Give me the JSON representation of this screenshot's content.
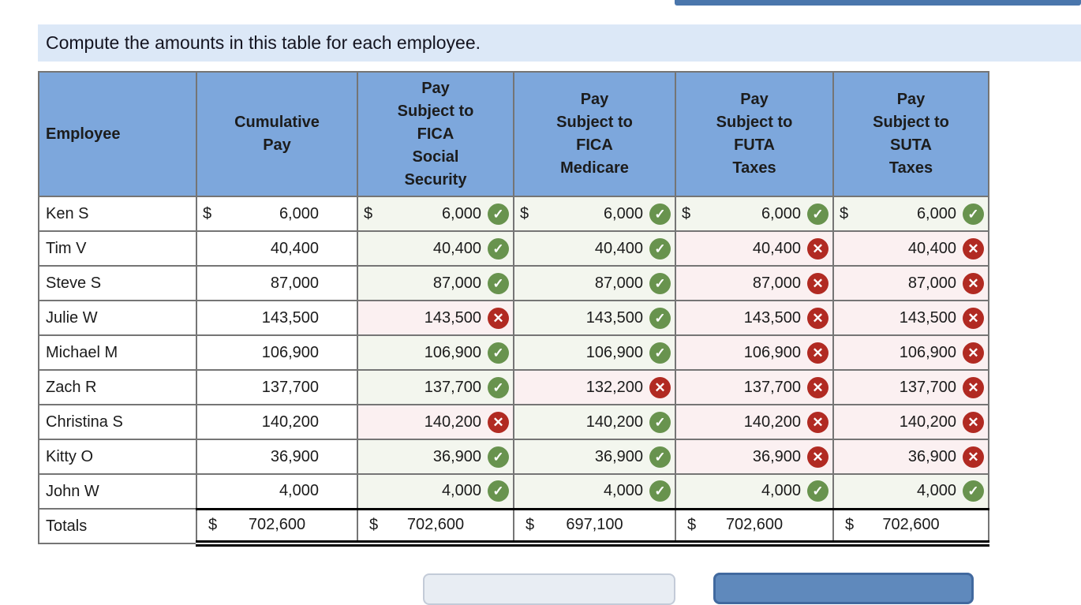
{
  "instruction": "Compute the amounts in this table for each employee.",
  "icons": {
    "check": "✓",
    "cross": "✕"
  },
  "colors": {
    "header_bg": "#7da7dc",
    "banner_bg": "#dce8f7",
    "correct_bg": "#f3f6ee",
    "incorrect_bg": "#fbf0f1",
    "check_green": "#68934e",
    "cross_red": "#b12a22",
    "accent_blue": "#5f89bc"
  },
  "table": {
    "headers": [
      "Employee",
      "Cumulative\nPay",
      "Pay\nSubject to\nFICA\nSocial\nSecurity",
      "Pay\nSubject to\nFICA\nMedicare",
      "Pay\nSubject to\nFUTA\nTaxes",
      "Pay\nSubject to\nSUTA\nTaxes"
    ],
    "rows": [
      {
        "name": "Ken S",
        "dollar": "$",
        "cumulative": "6,000",
        "answers": [
          {
            "value": "6,000",
            "status": "correct"
          },
          {
            "value": "6,000",
            "status": "correct"
          },
          {
            "value": "6,000",
            "status": "correct"
          },
          {
            "value": "6,000",
            "status": "correct"
          }
        ]
      },
      {
        "name": "Tim V",
        "dollar": "",
        "cumulative": "40,400",
        "answers": [
          {
            "value": "40,400",
            "status": "correct"
          },
          {
            "value": "40,400",
            "status": "correct"
          },
          {
            "value": "40,400",
            "status": "incorrect"
          },
          {
            "value": "40,400",
            "status": "incorrect"
          }
        ]
      },
      {
        "name": "Steve S",
        "dollar": "",
        "cumulative": "87,000",
        "answers": [
          {
            "value": "87,000",
            "status": "correct"
          },
          {
            "value": "87,000",
            "status": "correct"
          },
          {
            "value": "87,000",
            "status": "incorrect"
          },
          {
            "value": "87,000",
            "status": "incorrect"
          }
        ]
      },
      {
        "name": "Julie W",
        "dollar": "",
        "cumulative": "143,500",
        "answers": [
          {
            "value": "143,500",
            "status": "incorrect"
          },
          {
            "value": "143,500",
            "status": "correct"
          },
          {
            "value": "143,500",
            "status": "incorrect"
          },
          {
            "value": "143,500",
            "status": "incorrect"
          }
        ]
      },
      {
        "name": "Michael M",
        "dollar": "",
        "cumulative": "106,900",
        "answers": [
          {
            "value": "106,900",
            "status": "correct"
          },
          {
            "value": "106,900",
            "status": "correct"
          },
          {
            "value": "106,900",
            "status": "incorrect"
          },
          {
            "value": "106,900",
            "status": "incorrect"
          }
        ]
      },
      {
        "name": "Zach R",
        "dollar": "",
        "cumulative": "137,700",
        "answers": [
          {
            "value": "137,700",
            "status": "correct"
          },
          {
            "value": "132,200",
            "status": "incorrect"
          },
          {
            "value": "137,700",
            "status": "incorrect"
          },
          {
            "value": "137,700",
            "status": "incorrect"
          }
        ]
      },
      {
        "name": "Christina S",
        "dollar": "",
        "cumulative": "140,200",
        "answers": [
          {
            "value": "140,200",
            "status": "incorrect"
          },
          {
            "value": "140,200",
            "status": "correct"
          },
          {
            "value": "140,200",
            "status": "incorrect"
          },
          {
            "value": "140,200",
            "status": "incorrect"
          }
        ]
      },
      {
        "name": "Kitty O",
        "dollar": "",
        "cumulative": "36,900",
        "answers": [
          {
            "value": "36,900",
            "status": "correct"
          },
          {
            "value": "36,900",
            "status": "correct"
          },
          {
            "value": "36,900",
            "status": "incorrect"
          },
          {
            "value": "36,900",
            "status": "incorrect"
          }
        ]
      },
      {
        "name": "John W",
        "dollar": "",
        "cumulative": "4,000",
        "answers": [
          {
            "value": "4,000",
            "status": "correct"
          },
          {
            "value": "4,000",
            "status": "correct"
          },
          {
            "value": "4,000",
            "status": "correct"
          },
          {
            "value": "4,000",
            "status": "correct"
          }
        ]
      }
    ],
    "totals": {
      "label": "Totals",
      "dollar": "$",
      "values": [
        "702,600",
        "702,600",
        "697,100",
        "702,600",
        "702,600"
      ]
    }
  }
}
